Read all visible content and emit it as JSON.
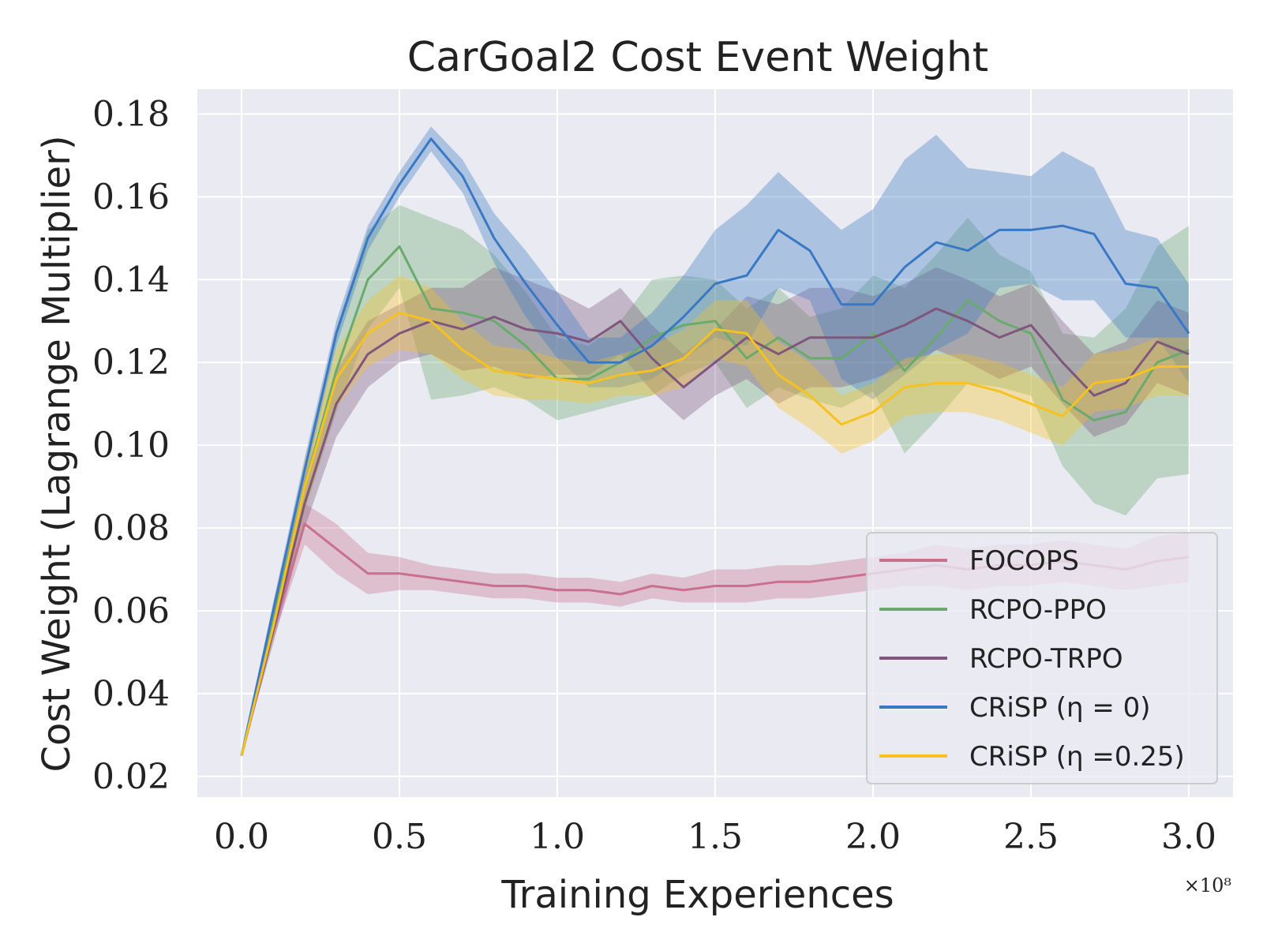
{
  "chart_data": {
    "type": "line",
    "title": "CarGoal2 Cost Event Weight",
    "xlabel": "Training Experiences",
    "ylabel": "Cost Weight (Lagrange Multiplier)",
    "x_multiplier": "×10⁸",
    "xlim": [
      -0.14,
      3.14
    ],
    "ylim": [
      0.015,
      0.186
    ],
    "xticks": [
      0.0,
      0.5,
      1.0,
      1.5,
      2.0,
      2.5,
      3.0
    ],
    "xtick_labels": [
      "0.0",
      "0.5",
      "1.0",
      "1.5",
      "2.0",
      "2.5",
      "3.0"
    ],
    "yticks": [
      0.02,
      0.04,
      0.06,
      0.08,
      0.1,
      0.12,
      0.14,
      0.16,
      0.18
    ],
    "ytick_labels": [
      "0.02",
      "0.04",
      "0.06",
      "0.08",
      "0.10",
      "0.12",
      "0.14",
      "0.16",
      "0.18"
    ],
    "grid": true,
    "legend_position": "lower-right",
    "x": [
      0.0,
      0.1,
      0.2,
      0.3,
      0.4,
      0.5,
      0.6,
      0.7,
      0.8,
      0.9,
      1.0,
      1.1,
      1.2,
      1.3,
      1.4,
      1.5,
      1.6,
      1.7,
      1.8,
      1.9,
      2.0,
      2.1,
      2.2,
      2.3,
      2.4,
      2.5,
      2.6,
      2.7,
      2.8,
      2.9,
      3.0
    ],
    "series": [
      {
        "name": "FOCOPS",
        "label": "FOCOPS",
        "color": "#c9708d",
        "values": [
          0.025,
          0.055,
          0.081,
          0.075,
          0.069,
          0.069,
          0.068,
          0.067,
          0.066,
          0.066,
          0.065,
          0.065,
          0.064,
          0.066,
          0.065,
          0.066,
          0.066,
          0.067,
          0.067,
          0.068,
          0.069,
          0.07,
          0.071,
          0.07,
          0.071,
          0.071,
          0.072,
          0.071,
          0.07,
          0.072,
          0.073
        ],
        "spread": [
          0.0,
          0.002,
          0.005,
          0.006,
          0.005,
          0.004,
          0.003,
          0.003,
          0.003,
          0.003,
          0.003,
          0.003,
          0.003,
          0.003,
          0.003,
          0.004,
          0.004,
          0.004,
          0.004,
          0.004,
          0.004,
          0.004,
          0.005,
          0.005,
          0.005,
          0.005,
          0.005,
          0.005,
          0.005,
          0.006,
          0.006
        ]
      },
      {
        "name": "RCPO-PPO",
        "label": "RCPO-PPO",
        "color": "#6aaa6c",
        "values": [
          0.025,
          0.058,
          0.09,
          0.118,
          0.14,
          0.148,
          0.133,
          0.132,
          0.13,
          0.124,
          0.116,
          0.116,
          0.12,
          0.126,
          0.129,
          0.13,
          0.121,
          0.126,
          0.121,
          0.121,
          0.127,
          0.118,
          0.126,
          0.135,
          0.13,
          0.127,
          0.111,
          0.106,
          0.108,
          0.12,
          0.123
        ],
        "spread": [
          0.0,
          0.003,
          0.006,
          0.01,
          0.012,
          0.01,
          0.022,
          0.02,
          0.016,
          0.013,
          0.01,
          0.008,
          0.01,
          0.014,
          0.012,
          0.01,
          0.012,
          0.012,
          0.01,
          0.012,
          0.014,
          0.02,
          0.02,
          0.02,
          0.016,
          0.015,
          0.016,
          0.02,
          0.025,
          0.028,
          0.03
        ]
      },
      {
        "name": "RCPO-TRPO",
        "label": "RCPO-TRPO",
        "color": "#7f577d",
        "values": [
          0.025,
          0.055,
          0.086,
          0.11,
          0.122,
          0.127,
          0.13,
          0.128,
          0.131,
          0.128,
          0.127,
          0.125,
          0.13,
          0.121,
          0.114,
          0.12,
          0.126,
          0.122,
          0.126,
          0.126,
          0.126,
          0.129,
          0.133,
          0.13,
          0.126,
          0.129,
          0.12,
          0.112,
          0.115,
          0.125,
          0.122
        ],
        "spread": [
          0.0,
          0.003,
          0.006,
          0.008,
          0.008,
          0.007,
          0.008,
          0.01,
          0.012,
          0.012,
          0.01,
          0.008,
          0.008,
          0.008,
          0.008,
          0.008,
          0.01,
          0.012,
          0.012,
          0.012,
          0.01,
          0.01,
          0.01,
          0.01,
          0.01,
          0.01,
          0.01,
          0.01,
          0.01,
          0.01,
          0.01
        ]
      },
      {
        "name": "CRiSP eta=0",
        "label": "CRiSP (η = 0)",
        "color": "#3a78c3",
        "values": [
          0.025,
          0.06,
          0.094,
          0.127,
          0.15,
          0.163,
          0.174,
          0.165,
          0.15,
          0.139,
          0.129,
          0.12,
          0.12,
          0.124,
          0.131,
          0.139,
          0.141,
          0.152,
          0.147,
          0.134,
          0.134,
          0.143,
          0.149,
          0.147,
          0.152,
          0.152,
          0.153,
          0.151,
          0.139,
          0.138,
          0.127
        ],
        "spread": [
          0.0,
          0.002,
          0.003,
          0.003,
          0.003,
          0.003,
          0.003,
          0.004,
          0.006,
          0.008,
          0.008,
          0.006,
          0.006,
          0.008,
          0.01,
          0.013,
          0.017,
          0.014,
          0.012,
          0.018,
          0.023,
          0.026,
          0.026,
          0.02,
          0.014,
          0.013,
          0.018,
          0.016,
          0.013,
          0.012,
          0.012
        ]
      },
      {
        "name": "CRiSP eta=0.25",
        "label": "CRiSP (η =0.25)",
        "color": "#f5c221",
        "values": [
          0.025,
          0.056,
          0.09,
          0.116,
          0.127,
          0.132,
          0.13,
          0.123,
          0.118,
          0.117,
          0.116,
          0.115,
          0.117,
          0.118,
          0.121,
          0.128,
          0.127,
          0.117,
          0.112,
          0.105,
          0.108,
          0.114,
          0.115,
          0.115,
          0.113,
          0.11,
          0.107,
          0.115,
          0.116,
          0.119,
          0.119
        ],
        "spread": [
          0.0,
          0.003,
          0.006,
          0.007,
          0.008,
          0.009,
          0.008,
          0.007,
          0.006,
          0.006,
          0.005,
          0.005,
          0.005,
          0.006,
          0.007,
          0.007,
          0.008,
          0.008,
          0.008,
          0.007,
          0.007,
          0.007,
          0.007,
          0.007,
          0.007,
          0.007,
          0.007,
          0.007,
          0.007,
          0.007,
          0.007
        ]
      }
    ]
  }
}
